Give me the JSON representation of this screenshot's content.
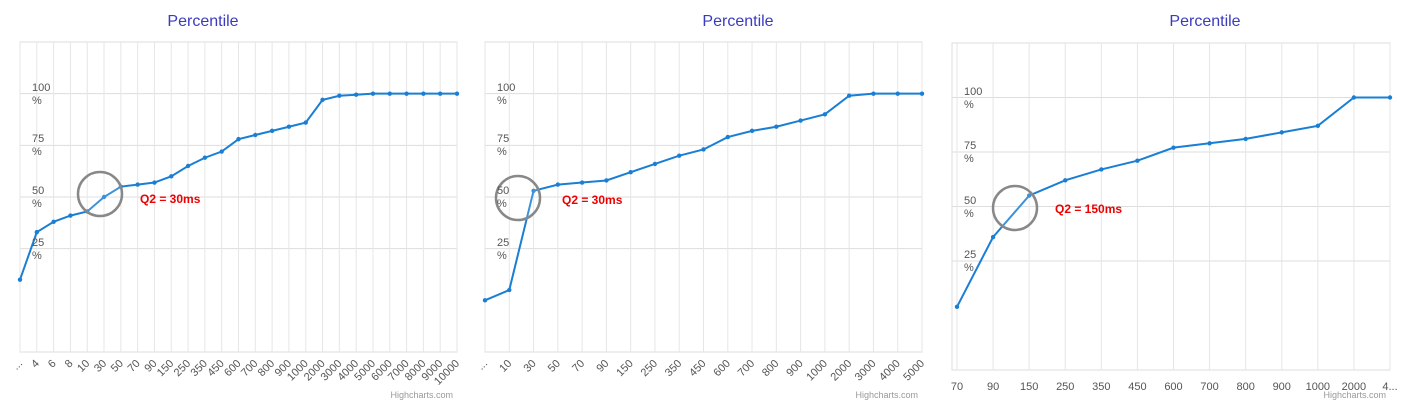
{
  "chart_data": [
    {
      "type": "line",
      "title": "Percentile",
      "annotation": "Q2 = 30ms",
      "credit": "Highcharts.com",
      "color": "#1a7fd4",
      "grid": true,
      "categories": [
        "...",
        "4",
        "6",
        "8",
        "10",
        "30",
        "50",
        "70",
        "90",
        "150",
        "250",
        "350",
        "450",
        "600",
        "700",
        "800",
        "900",
        "1000",
        "2000",
        "3000",
        "4000",
        "5000",
        "6000",
        "7000",
        "8000",
        "9000",
        "10000"
      ],
      "values": [
        10,
        33,
        38,
        41,
        43,
        50,
        55,
        56,
        57,
        60,
        65,
        69,
        72,
        78,
        80,
        82,
        84,
        86,
        97,
        99,
        99.5,
        100,
        100,
        100,
        100,
        100,
        100
      ],
      "ylim": [
        -25,
        125
      ],
      "yticks": [
        {
          "value": 25,
          "label": "25 %"
        },
        {
          "value": 50,
          "label": "50 %"
        },
        {
          "value": 75,
          "label": "75 %"
        },
        {
          "value": 100,
          "label": "100 %"
        }
      ]
    },
    {
      "type": "line",
      "title": "Percentile",
      "annotation": "Q2 = 30ms",
      "credit": "Highcharts.com",
      "color": "#1a7fd4",
      "grid": true,
      "categories": [
        "...",
        "10",
        "30",
        "50",
        "70",
        "90",
        "150",
        "250",
        "350",
        "450",
        "600",
        "700",
        "800",
        "900",
        "1000",
        "2000",
        "3000",
        "4000",
        "5000"
      ],
      "values": [
        0,
        5,
        53,
        56,
        57,
        58,
        62,
        66,
        70,
        73,
        79,
        82,
        84,
        87,
        90,
        99,
        100,
        100,
        100
      ],
      "ylim": [
        -25,
        125
      ],
      "yticks": [
        {
          "value": 25,
          "label": "25 %"
        },
        {
          "value": 50,
          "label": "50 %"
        },
        {
          "value": 75,
          "label": "75 %"
        },
        {
          "value": 100,
          "label": "100 %"
        }
      ]
    },
    {
      "type": "line",
      "title": "Percentile",
      "annotation": "Q2 = 150ms",
      "credit": "Highcharts.com",
      "color": "#1a7fd4",
      "grid": true,
      "categories": [
        "70",
        "90",
        "150",
        "250",
        "350",
        "450",
        "600",
        "700",
        "800",
        "900",
        "1000",
        "2000",
        "4..."
      ],
      "values": [
        4,
        36,
        55,
        62,
        67,
        71,
        77,
        79,
        81,
        84,
        87,
        100,
        100
      ],
      "ylim": [
        -25,
        125
      ],
      "yticks": [
        {
          "value": 25,
          "label": "25 %"
        },
        {
          "value": 50,
          "label": "50 %"
        },
        {
          "value": 75,
          "label": "75 %"
        },
        {
          "value": 100,
          "label": "100 %"
        }
      ]
    }
  ]
}
